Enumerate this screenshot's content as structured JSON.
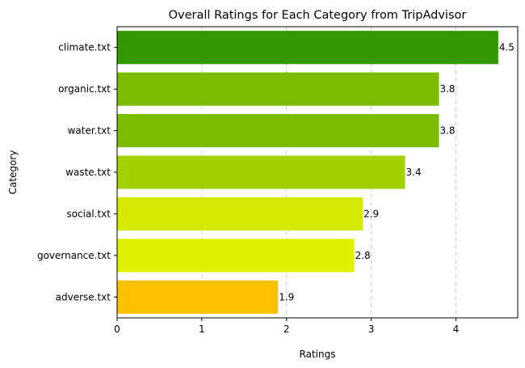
{
  "chart_data": {
    "type": "bar",
    "orientation": "horizontal",
    "title": "Overall Ratings for Each Category from TripAdvisor",
    "xlabel": "Ratings",
    "ylabel": "Category",
    "xlim": [
      0,
      4.73
    ],
    "xticks": [
      0,
      1,
      2,
      3,
      4
    ],
    "grid": "x-dashed",
    "categories": [
      "adverse.txt",
      "governance.txt",
      "social.txt",
      "waste.txt",
      "water.txt",
      "organic.txt",
      "climate.txt"
    ],
    "values": [
      1.9,
      2.8,
      2.9,
      3.4,
      3.8,
      3.8,
      4.5
    ],
    "colors": [
      "#fdc100",
      "#dff000",
      "#d6e900",
      "#a2d100",
      "#7cbc00",
      "#7cbc00",
      "#339900"
    ]
  }
}
